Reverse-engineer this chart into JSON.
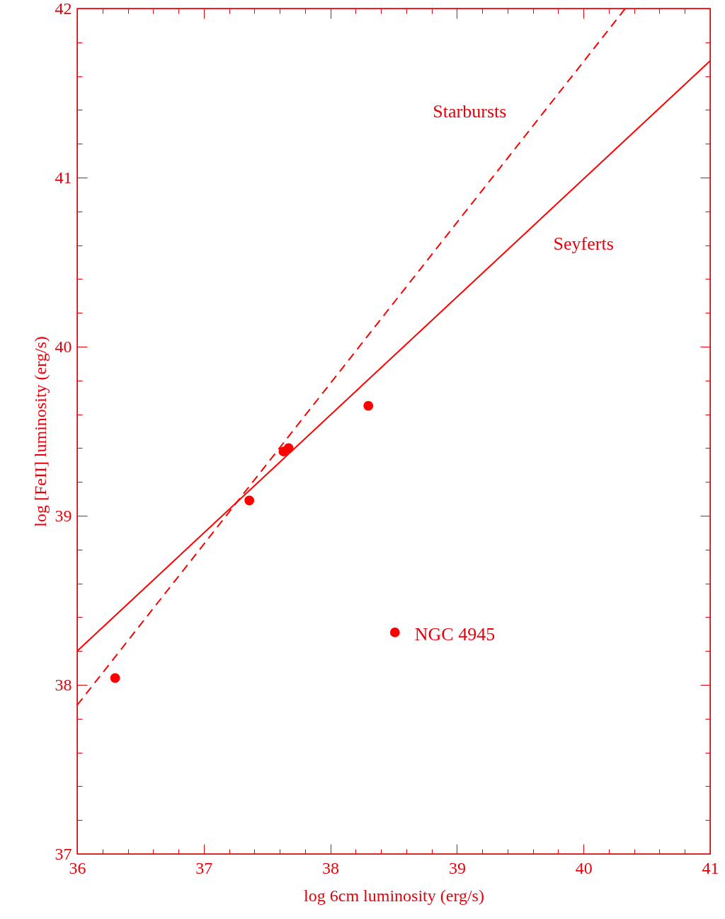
{
  "chart_data": {
    "type": "scatter",
    "xlabel": "log 6cm luminosity (erg/s)",
    "ylabel": "log [FeII] luminosity (erg/s)",
    "x": [
      36.3,
      37.36,
      37.63,
      37.67,
      38.3,
      38.51
    ],
    "series": [
      {
        "color": "#ff0000",
        "values": [
          38.04,
          39.09,
          39.38,
          39.4,
          39.65,
          38.31
        ]
      },
      {
        "type": "line",
        "name": "Seyferts",
        "color": "#ff0000",
        "line_style": "solid",
        "marker": "none",
        "x": [
          36,
          41
        ],
        "values": [
          38.2,
          41.69
        ]
      },
      {
        "type": "line",
        "name": "Starbursts",
        "color": "#ff0000",
        "line_style": "dashed",
        "marker": "none",
        "x": [
          36,
          40.33
        ],
        "values": [
          37.88,
          42
        ]
      }
    ],
    "marker": "circle",
    "grid": false,
    "legend": false,
    "annotations": [
      {
        "text": "NGC 4945",
        "x": 38.51,
        "y": 38.31
      }
    ],
    "xlim": [
      36,
      41
    ],
    "ylim": [
      37,
      42
    ],
    "xticks": [
      36,
      {
        "value": 36.2,
        "label": null
      },
      {
        "value": 36.4,
        "label": null
      },
      {
        "value": 36.6,
        "label": null
      },
      {
        "value": 36.8,
        "label": null
      },
      37,
      {
        "value": 37.2,
        "label": null
      },
      {
        "value": 37.4,
        "label": null
      },
      {
        "value": 37.6,
        "label": null
      },
      {
        "value": 37.8,
        "label": null
      },
      38,
      {
        "value": 38.2,
        "label": null
      },
      {
        "value": 38.4,
        "label": null
      },
      {
        "value": 38.6,
        "label": null
      },
      {
        "value": 38.8,
        "label": null
      },
      39,
      {
        "value": 39.2,
        "label": null
      },
      {
        "value": 39.4,
        "label": null
      },
      {
        "value": 39.6,
        "label": null
      },
      {
        "value": 39.8,
        "label": null
      },
      40,
      {
        "value": 40.2,
        "label": null
      },
      {
        "value": 40.4,
        "label": null
      },
      {
        "value": 40.6,
        "label": null
      },
      {
        "value": 40.8,
        "label": null
      },
      41
    ],
    "yticks": [
      37,
      {
        "value": 37.2,
        "label": null
      },
      {
        "value": 37.4,
        "label": null
      },
      {
        "value": 37.6,
        "label": null
      },
      {
        "value": 37.8,
        "label": null
      },
      38,
      {
        "value": 38.2,
        "label": null
      },
      {
        "value": 38.4,
        "label": null
      },
      {
        "value": 38.6,
        "label": null
      },
      {
        "value": 38.8,
        "label": null
      },
      39,
      {
        "value": 39.2,
        "label": null
      },
      {
        "value": 39.4,
        "label": null
      },
      {
        "value": 39.6,
        "label": null
      },
      {
        "value": 39.8,
        "label": null
      },
      40,
      {
        "value": 40.2,
        "label": null
      },
      {
        "value": 40.4,
        "label": null
      },
      {
        "value": 40.6,
        "label": null
      },
      {
        "value": 40.8,
        "label": null
      },
      41,
      {
        "value": 41.2,
        "label": null
      },
      {
        "value": 41.4,
        "label": null
      },
      {
        "value": 41.6,
        "label": null
      },
      {
        "value": 41.8,
        "label": null
      },
      42
    ]
  }
}
